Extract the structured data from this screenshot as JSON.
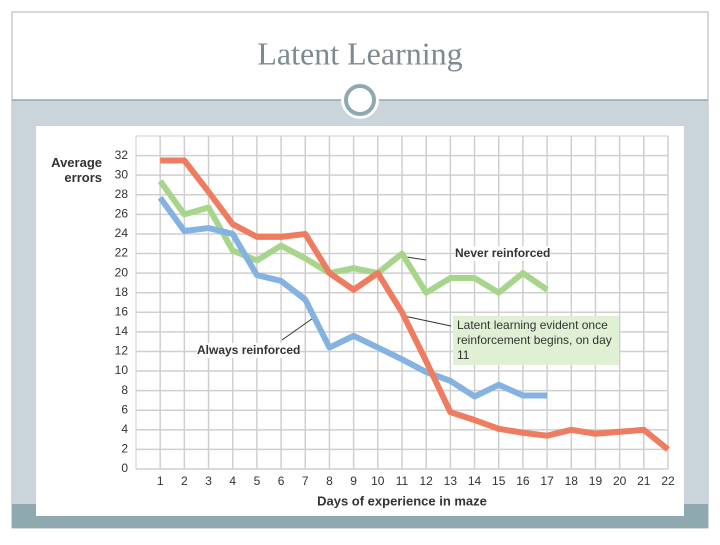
{
  "title": "Latent Learning",
  "chart_data": {
    "type": "line",
    "ylabel": "Average errors",
    "xlabel": "Days of experience in maze",
    "x": [
      1,
      2,
      3,
      4,
      5,
      6,
      7,
      8,
      9,
      10,
      11,
      12,
      13,
      14,
      15,
      16,
      17,
      18,
      19,
      20,
      21,
      22
    ],
    "series": [
      {
        "name": "Never reinforced",
        "color": "#a8d58c",
        "values": [
          29.4,
          26,
          26.7,
          22.3,
          21.3,
          22.8,
          21.5,
          20,
          20.5,
          20,
          22,
          18,
          19.5,
          19.5,
          18,
          20,
          18.3,
          null,
          null,
          null,
          null,
          null
        ]
      },
      {
        "name": "Always reinforced",
        "color": "#84b3e2",
        "values": [
          27.7,
          24.3,
          24.6,
          24,
          19.8,
          19.2,
          17.3,
          12.4,
          13.6,
          12.4,
          11.2,
          9.9,
          9,
          7.4,
          8.6,
          7.5,
          7.5,
          null,
          null,
          null,
          null,
          null
        ]
      },
      {
        "name": "Latent learning evident once reinforcement begins, on day 11",
        "color": "#ee7c60",
        "values": [
          31.5,
          31.5,
          28.3,
          25,
          23.7,
          23.7,
          24,
          20,
          18.3,
          20,
          16,
          11,
          5.8,
          5,
          4.1,
          3.7,
          3.4,
          4,
          3.6,
          3.8,
          4,
          2
        ]
      }
    ],
    "xlim": [
      0,
      22
    ],
    "ylim": [
      0,
      34
    ],
    "xticks": [
      1,
      2,
      3,
      4,
      5,
      6,
      7,
      8,
      9,
      10,
      11,
      12,
      13,
      14,
      15,
      16,
      17,
      18,
      19,
      20,
      21,
      22
    ],
    "yticks": [
      0,
      2,
      4,
      6,
      8,
      10,
      12,
      14,
      16,
      18,
      20,
      22,
      24,
      26,
      28,
      30,
      32
    ],
    "grid": true
  }
}
